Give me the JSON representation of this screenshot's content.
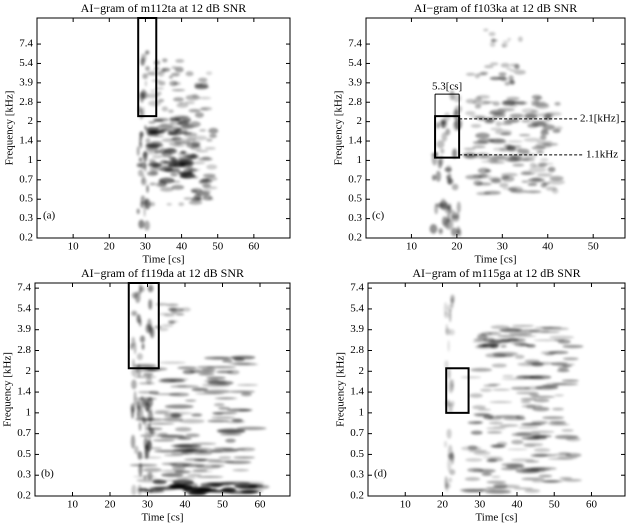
{
  "chart_data": [
    {
      "type": "spectrogram",
      "title": "AI−gram of m112ta at 12 dB SNR",
      "xlabel": "Time [cs]",
      "ylabel": "Frequency [kHz]",
      "panel_label": "(a)",
      "xlim": [
        0,
        70
      ],
      "xticks": [
        10,
        20,
        30,
        40,
        50,
        60
      ],
      "ylim": [
        0.2,
        11.3
      ],
      "yticks": [
        0.2,
        0.3,
        0.5,
        0.7,
        1,
        1.4,
        2,
        2.8,
        3.9,
        5.4,
        7.4
      ],
      "boxes": [
        {
          "x": [
            28,
            33
          ],
          "y": [
            2.2,
            11.3
          ]
        }
      ]
    },
    {
      "type": "spectrogram",
      "title": "AI−gram of f103ka at 12 dB SNR",
      "xlabel": "Time [cs]",
      "ylabel": "Frequency [kHz]",
      "panel_label": "(c)",
      "xlim": [
        0,
        57
      ],
      "xticks": [
        10,
        20,
        30,
        40,
        50
      ],
      "ylim": [
        0.2,
        11.3
      ],
      "yticks": [
        0.2,
        0.3,
        0.5,
        0.7,
        1,
        1.4,
        2,
        2.8,
        3.9,
        5.4,
        7.4
      ],
      "boxes": [
        {
          "x": [
            15.2,
            20.5
          ],
          "y": [
            1.05,
            2.2
          ]
        }
      ],
      "duration": {
        "value": 5.3,
        "label": "5.3[cs]"
      },
      "hlines": [
        {
          "value": 2.1,
          "label": "2.1[kHz]"
        },
        {
          "value": 1.1,
          "label": "1.1kHz"
        }
      ]
    },
    {
      "type": "spectrogram",
      "title": "AI−gram of f119da at 12 dB SNR",
      "xlabel": "Time [cs]",
      "ylabel": "Frequency [kHz]",
      "panel_label": "(b)",
      "xlim": [
        0,
        68
      ],
      "xticks": [
        10,
        20,
        30,
        40,
        50,
        60
      ],
      "ylim": [
        0.2,
        8
      ],
      "yticks": [
        0.2,
        0.3,
        0.5,
        0.7,
        1,
        1.4,
        2,
        2.8,
        3.9,
        5.4,
        7.4
      ],
      "boxes": [
        {
          "x": [
            25,
            33
          ],
          "y": [
            2.1,
            8
          ]
        }
      ]
    },
    {
      "type": "spectrogram",
      "title": "AI−gram of m115ga at 12 dB SNR",
      "xlabel": "Time [cs]",
      "ylabel": "Frequency [kHz]",
      "panel_label": "(d)",
      "xlim": [
        0,
        69
      ],
      "xticks": [
        10,
        20,
        30,
        40,
        50,
        60
      ],
      "ylim": [
        0.2,
        8
      ],
      "yticks": [
        0.2,
        0.3,
        0.5,
        0.7,
        1,
        1.4,
        2,
        2.8,
        3.9,
        5.4,
        7.4
      ],
      "boxes": [
        {
          "x": [
            21,
            27
          ],
          "y": [
            1.0,
            2.1
          ]
        }
      ]
    }
  ]
}
